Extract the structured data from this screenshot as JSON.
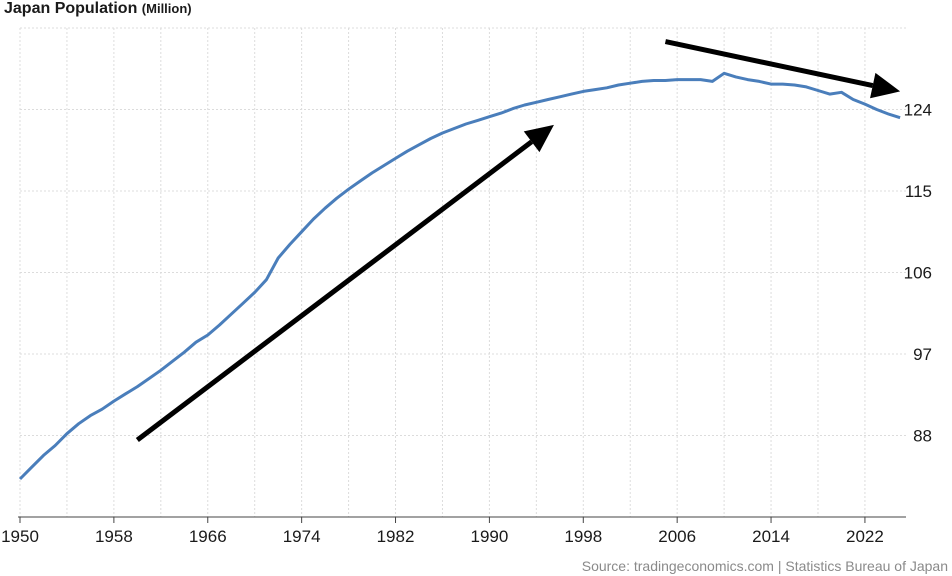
{
  "chart_data": {
    "type": "line",
    "title": "Japan Population",
    "subtitle": "(Million)",
    "source": "Source: tradingeconomics.com | Statistics Bureau of Japan",
    "xlabel": "",
    "ylabel": "",
    "x_ticks": [
      "1950",
      "1958",
      "1966",
      "1974",
      "1982",
      "1990",
      "1998",
      "2006",
      "2014",
      "2022"
    ],
    "y_ticks": [
      "88",
      "97",
      "106",
      "115",
      "124"
    ],
    "xlim": [
      1950,
      2025.5
    ],
    "ylim": [
      79,
      133
    ],
    "grid": true,
    "colors": {
      "line": "#4a7ebb",
      "grid": "#dcdcdc",
      "arrow": "#000000"
    },
    "series": [
      {
        "x": [
          1950,
          1951,
          1952,
          1953,
          1954,
          1955,
          1956,
          1957,
          1958,
          1959,
          1960,
          1961,
          1962,
          1963,
          1964,
          1965,
          1966,
          1967,
          1968,
          1969,
          1970,
          1971,
          1972,
          1973,
          1974,
          1975,
          1976,
          1977,
          1978,
          1979,
          1980,
          1981,
          1982,
          1983,
          1984,
          1985,
          1986,
          1987,
          1988,
          1989,
          1990,
          1991,
          1992,
          1993,
          1994,
          1995,
          1996,
          1997,
          1998,
          1999,
          2000,
          2001,
          2002,
          2003,
          2004,
          2005,
          2006,
          2007,
          2008,
          2009,
          2010,
          2011,
          2012,
          2013,
          2014,
          2015,
          2016,
          2017,
          2018,
          2019,
          2020,
          2021,
          2022,
          2023,
          2024,
          2025
        ],
        "values": [
          83.2,
          84.5,
          85.8,
          86.9,
          88.2,
          89.3,
          90.2,
          90.9,
          91.8,
          92.6,
          93.4,
          94.3,
          95.2,
          96.2,
          97.2,
          98.3,
          99.1,
          100.2,
          101.4,
          102.6,
          103.8,
          105.2,
          107.6,
          109.1,
          110.5,
          111.9,
          113.1,
          114.2,
          115.2,
          116.1,
          117.0,
          117.8,
          118.6,
          119.4,
          120.1,
          120.8,
          121.4,
          121.9,
          122.4,
          122.8,
          123.2,
          123.6,
          124.1,
          124.5,
          124.8,
          125.1,
          125.4,
          125.7,
          126.0,
          126.2,
          126.4,
          126.7,
          126.9,
          127.1,
          127.2,
          127.2,
          127.3,
          127.3,
          127.3,
          127.1,
          128.0,
          127.6,
          127.3,
          127.1,
          126.8,
          126.8,
          126.7,
          126.5,
          126.1,
          125.7,
          125.9,
          125.1,
          124.6,
          124.0,
          123.5,
          123.1
        ]
      }
    ],
    "annotations": [
      {
        "type": "arrow",
        "from": [
          1960,
          87.5
        ],
        "to": [
          1995.5,
          122.3
        ],
        "color": "#000000"
      },
      {
        "type": "arrow",
        "from": [
          2005,
          131.5
        ],
        "to": [
          2025,
          126.0
        ],
        "color": "#000000"
      }
    ]
  }
}
